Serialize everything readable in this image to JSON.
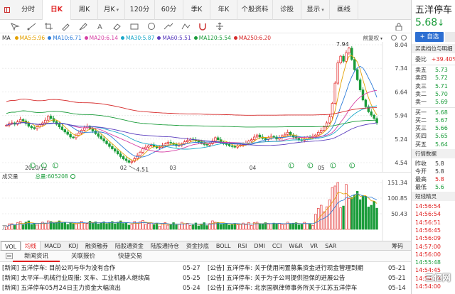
{
  "top_tabs": [
    {
      "label": "分时",
      "active": false
    },
    {
      "label": "日K",
      "active": true
    },
    {
      "label": "周K",
      "active": false
    },
    {
      "label": "月K",
      "active": false
    },
    {
      "label": "120分",
      "active": false
    },
    {
      "label": "60分",
      "active": false
    },
    {
      "label": "季K",
      "active": false
    },
    {
      "label": "年K",
      "active": false
    },
    {
      "label": "个股资料",
      "active": false
    },
    {
      "label": "诊股",
      "active": false
    },
    {
      "label": "显示",
      "active": false
    },
    {
      "label": "画线",
      "active": false
    }
  ],
  "tools": [
    "cursor-icon",
    "ray-icon",
    "crop-icon",
    "pencil-icon",
    "brush-icon",
    "text-icon",
    "eraser-icon",
    "rect-icon",
    "circle-icon",
    "measure-icon",
    "shape-icon",
    "magnet-icon",
    "move-icon",
    "lock-icon"
  ],
  "ma_row": {
    "label": "MA",
    "items": [
      {
        "text": "MA5:5.96",
        "color": "#e3a000"
      },
      {
        "text": "MA10:6.71",
        "color": "#2a7ad8"
      },
      {
        "text": "MA20:6.14",
        "color": "#d63fa4"
      },
      {
        "text": "MA30:5.87",
        "color": "#1aa7c8"
      },
      {
        "text": "MA60:5.51",
        "color": "#5a3dbe"
      },
      {
        "text": "MA120:5.54",
        "color": "#1a9c3a"
      },
      {
        "text": "MA250:6.20",
        "color": "#d62a2a"
      }
    ],
    "fq_label": "前复权"
  },
  "main_axis": {
    "ticks": [
      "8.04",
      "7.34",
      "6.64",
      "5.94",
      "5.24",
      "4.54"
    ],
    "high_label": "7.94",
    "low_label": "4.51"
  },
  "chart_data": {
    "type": "candlestick",
    "title": "",
    "ylim": [
      4.54,
      8.04
    ],
    "x_ticks": [
      "2020/12",
      "02",
      "03",
      "04",
      "05"
    ],
    "high": 7.94,
    "low": 4.51,
    "ma": {
      "MA5": 5.96,
      "MA10": 6.71,
      "MA20": 6.14,
      "MA30": 5.87,
      "MA60": 5.51,
      "MA120": 5.54,
      "MA250": 6.2
    },
    "price_series": [
      5.65,
      5.7,
      5.72,
      5.68,
      5.75,
      5.82,
      5.78,
      5.7,
      5.62,
      5.58,
      5.55,
      5.6,
      5.66,
      5.72,
      5.8,
      5.92,
      5.85,
      5.76,
      5.68,
      5.6,
      5.52,
      5.45,
      5.38,
      5.3,
      5.28,
      5.35,
      5.42,
      5.5,
      5.58,
      5.62,
      5.55,
      5.48,
      5.4,
      5.32,
      5.25,
      5.18,
      5.1,
      5.02,
      4.95,
      4.88,
      4.8,
      4.72,
      4.65,
      4.6,
      4.55,
      4.58,
      4.66,
      4.75,
      4.85,
      4.95,
      5.0,
      5.04,
      5.06,
      5.02,
      4.98,
      5.0,
      5.05,
      5.1,
      5.14,
      5.12,
      5.08,
      5.04,
      5.06,
      5.1,
      5.16,
      5.2,
      5.24,
      5.22,
      5.18,
      5.16,
      5.12,
      5.08,
      5.06,
      5.1,
      5.18,
      5.28,
      5.22,
      5.15,
      5.1,
      5.08,
      5.04,
      5.02,
      5.0,
      5.04,
      5.06,
      5.08,
      5.12,
      5.18,
      5.22,
      5.3,
      5.36,
      5.3,
      5.26,
      5.22,
      5.28,
      5.32,
      5.3,
      5.24,
      5.28,
      5.34,
      5.38,
      5.44,
      5.36,
      5.3,
      5.26,
      5.22,
      5.2,
      5.24,
      5.3,
      5.28,
      5.32,
      5.36,
      5.44,
      5.5,
      5.6,
      5.72,
      5.9,
      6.3,
      6.9,
      7.5,
      7.7,
      7.55,
      7.8,
      7.94,
      7.6,
      7.3,
      7.0,
      6.7,
      6.4,
      6.2,
      6.05,
      5.95,
      5.85,
      5.72
    ],
    "volume_ylim": [
      0,
      151.34
    ],
    "volume_ticks": [
      "151.34",
      "100.85",
      "50.43"
    ],
    "volume_unit": "万",
    "volume_total": 605208
  },
  "volume_header": {
    "label": "成交量",
    "total": "总量:605208"
  },
  "volume_axis": {
    "ticks": [
      "151.34",
      "100.85",
      "50.43"
    ],
    "unit": "万"
  },
  "date_axis": [
    "2020/12",
    "02",
    "03",
    "04",
    "05"
  ],
  "indicator_tabs": {
    "items": [
      {
        "label": "VOL",
        "style": "box"
      },
      {
        "label": "均线",
        "style": "active"
      },
      {
        "label": "MACD",
        "style": ""
      },
      {
        "label": "KDJ",
        "style": ""
      },
      {
        "label": "融资融券",
        "style": ""
      },
      {
        "label": "陆股通资金",
        "style": ""
      },
      {
        "label": "陆股通持仓",
        "style": ""
      },
      {
        "label": "资金抄底",
        "style": ""
      },
      {
        "label": "BOLL",
        "style": ""
      },
      {
        "label": "RSI",
        "style": ""
      },
      {
        "label": "DMI",
        "style": ""
      },
      {
        "label": "CCI",
        "style": ""
      },
      {
        "label": "W&R",
        "style": ""
      },
      {
        "label": "VR",
        "style": ""
      },
      {
        "label": "SAR",
        "style": ""
      }
    ],
    "right_label": "筹码"
  },
  "news_tabs": [
    "新闻资讯",
    "关联报价",
    "快捷交易"
  ],
  "news_rows": [
    {
      "left_title": "[新闻] 五洋停车: 目前公司与华为没有合作",
      "left_date": "05-27",
      "right_title": "[公告] 五洋停车: 关于使用闲置募集资金进行现金管理到期",
      "right_date": "05-21"
    },
    {
      "left_title": "[新闻] 太平洋--机械行业周报: 叉车、工业机器人继续高",
      "left_date": "05-25",
      "right_title": "[公告] 五洋停车: 关于为子公司提供担保的进展公告",
      "right_date": "05-21"
    },
    {
      "left_title": "[新闻] 五洋停车05月24日主力资金大幅流出",
      "left_date": "05-24",
      "right_title": "[公告] 五洋停车: 北京国枫律师事务所关于江苏五洋停车",
      "right_date": "05-14"
    }
  ],
  "right_panel": {
    "stock_name": "五洋停车",
    "price": "5.68",
    "price_arrow": "↓",
    "add_button": "+ 自选",
    "depth_title": "买卖档位与明细",
    "ratio_label": "委比",
    "ratio_value": "+39.40%",
    "sells": [
      {
        "label": "卖五",
        "value": "5.73"
      },
      {
        "label": "卖四",
        "value": "5.72"
      },
      {
        "label": "卖三",
        "value": "5.71"
      },
      {
        "label": "卖二",
        "value": "5.70"
      },
      {
        "label": "卖一",
        "value": "5.69"
      }
    ],
    "buys": [
      {
        "label": "买一",
        "value": "5.68"
      },
      {
        "label": "买二",
        "value": "5.67"
      },
      {
        "label": "买三",
        "value": "5.66"
      },
      {
        "label": "买四",
        "value": "5.65"
      },
      {
        "label": "买五",
        "value": "5.64"
      }
    ],
    "quote_title": "行情数据",
    "quotes": [
      {
        "label": "昨收",
        "value": "5.8",
        "cls": "dark"
      },
      {
        "label": "今开",
        "value": "5.8",
        "cls": "dark"
      },
      {
        "label": "最高",
        "value": "5.8",
        "cls": "red"
      },
      {
        "label": "最低",
        "value": "5.6",
        "cls": ""
      }
    ],
    "ticks_title": "短线精灵",
    "ticks": [
      {
        "text": "14:56:54",
        "cls": ""
      },
      {
        "text": "14:56:54",
        "cls": ""
      },
      {
        "text": "14:56:51",
        "cls": ""
      },
      {
        "text": "14:56:45",
        "cls": ""
      },
      {
        "text": "14:56:09",
        "cls": ""
      },
      {
        "text": "14:57:00",
        "cls": ""
      },
      {
        "text": "14:56:00",
        "cls": ""
      },
      {
        "text": "14:55:48",
        "cls": "green"
      },
      {
        "text": "14:54:45",
        "cls": ""
      },
      {
        "text": "14:54:33",
        "cls": ""
      },
      {
        "text": "14:54:00",
        "cls": ""
      }
    ]
  },
  "watermark": "三亿网"
}
